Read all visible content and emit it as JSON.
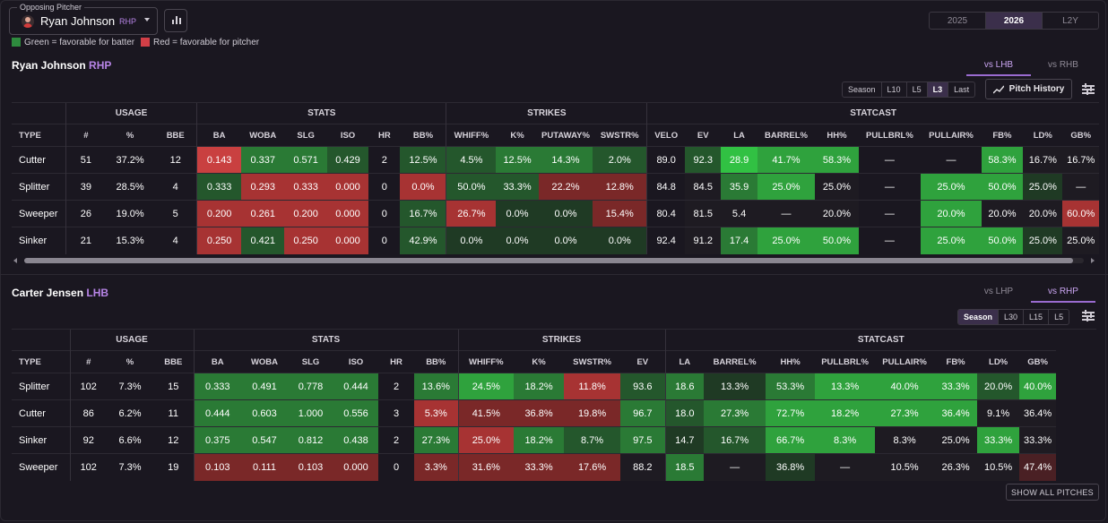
{
  "header": {
    "opposing_label": "Opposing Pitcher",
    "pitcher_name": "Ryan Johnson",
    "pitcher_hand": "RHP",
    "legend_green": "Green = favorable for batter",
    "legend_red": "Red = favorable for pitcher",
    "colors": {
      "green": "#2e8b3e",
      "red": "#d23f47",
      "accent": "#b784e6"
    }
  },
  "years": [
    {
      "label": "2025"
    },
    {
      "label": "2026"
    },
    {
      "label": "L2Y"
    }
  ],
  "pitcher_section": {
    "name": "Ryan Johnson",
    "hand": "RHP",
    "split_tabs": [
      "vs LHB",
      "vs RHB"
    ],
    "ranges": [
      "Season",
      "L10",
      "L5",
      "L3",
      "Last"
    ],
    "pitch_history": "Pitch History",
    "groups": [
      "USAGE",
      "STATS",
      "STRIKES",
      "STATCAST"
    ],
    "columns": [
      "TYPE",
      "#",
      "%",
      "BBE",
      "BA",
      "WOBA",
      "SLG",
      "ISO",
      "HR",
      "BB%",
      "WHIFF%",
      "K%",
      "PUTAWAY%",
      "SWSTR%",
      "VELO",
      "EV",
      "LA",
      "BARREL%",
      "HH%",
      "PULLBRL%",
      "PULLAIR%",
      "FB%",
      "LD%",
      "GB%"
    ],
    "rows": [
      [
        "Cutter",
        "51",
        "37.2%",
        "12",
        "0.143",
        "0.337",
        "0.571",
        "0.429",
        "2",
        "12.5%",
        "4.5%",
        "12.5%",
        "14.3%",
        "2.0%",
        "89.0",
        "92.3",
        "28.9",
        "41.7%",
        "58.3%",
        "—",
        "—",
        "58.3%",
        "16.7%",
        "16.7%"
      ],
      [
        "Splitter",
        "39",
        "28.5%",
        "4",
        "0.333",
        "0.293",
        "0.333",
        "0.000",
        "0",
        "0.0%",
        "50.0%",
        "33.3%",
        "22.2%",
        "12.8%",
        "84.8",
        "84.5",
        "35.9",
        "25.0%",
        "25.0%",
        "—",
        "25.0%",
        "50.0%",
        "25.0%",
        "—"
      ],
      [
        "Sweeper",
        "26",
        "19.0%",
        "5",
        "0.200",
        "0.261",
        "0.200",
        "0.000",
        "0",
        "16.7%",
        "26.7%",
        "0.0%",
        "0.0%",
        "15.4%",
        "80.4",
        "81.5",
        "5.4",
        "—",
        "20.0%",
        "—",
        "20.0%",
        "20.0%",
        "20.0%",
        "60.0%"
      ],
      [
        "Sinker",
        "21",
        "15.3%",
        "4",
        "0.250",
        "0.421",
        "0.250",
        "0.000",
        "0",
        "42.9%",
        "0.0%",
        "0.0%",
        "0.0%",
        "0.0%",
        "92.4",
        "91.2",
        "17.4",
        "25.0%",
        "50.0%",
        "—",
        "25.0%",
        "50.0%",
        "25.0%",
        "25.0%"
      ]
    ]
  },
  "batter_section": {
    "name": "Carter Jensen",
    "hand": "LHB",
    "split_tabs": [
      "vs LHP",
      "vs RHP"
    ],
    "ranges": [
      "Season",
      "L30",
      "L15",
      "L5"
    ],
    "groups": [
      "USAGE",
      "STATS",
      "STRIKES",
      "STATCAST"
    ],
    "columns": [
      "TYPE",
      "#",
      "%",
      "BBE",
      "BA",
      "WOBA",
      "SLG",
      "ISO",
      "HR",
      "BB%",
      "WHIFF%",
      "K%",
      "SWSTR%",
      "EV",
      "LA",
      "BARREL%",
      "HH%",
      "PULLBRL%",
      "PULLAIR%",
      "FB%",
      "LD%",
      "GB%"
    ],
    "rows": [
      [
        "Splitter",
        "102",
        "7.3%",
        "15",
        "0.333",
        "0.491",
        "0.778",
        "0.444",
        "2",
        "13.6%",
        "24.5%",
        "18.2%",
        "11.8%",
        "93.6",
        "18.6",
        "13.3%",
        "53.3%",
        "13.3%",
        "40.0%",
        "33.3%",
        "20.0%",
        "40.0%"
      ],
      [
        "Cutter",
        "86",
        "6.2%",
        "11",
        "0.444",
        "0.603",
        "1.000",
        "0.556",
        "3",
        "5.3%",
        "41.5%",
        "36.8%",
        "19.8%",
        "96.7",
        "18.0",
        "27.3%",
        "72.7%",
        "18.2%",
        "27.3%",
        "36.4%",
        "9.1%",
        "36.4%"
      ],
      [
        "Sinker",
        "92",
        "6.6%",
        "12",
        "0.375",
        "0.547",
        "0.812",
        "0.438",
        "2",
        "27.3%",
        "25.0%",
        "18.2%",
        "8.7%",
        "97.5",
        "14.7",
        "16.7%",
        "66.7%",
        "8.3%",
        "8.3%",
        "25.0%",
        "33.3%",
        "33.3%"
      ],
      [
        "Sweeper",
        "102",
        "7.3%",
        "19",
        "0.103",
        "0.111",
        "0.103",
        "0.000",
        "0",
        "3.3%",
        "31.6%",
        "33.3%",
        "17.6%",
        "88.2",
        "18.5",
        "—",
        "36.8%",
        "—",
        "10.5%",
        "26.3%",
        "10.5%",
        "47.4%"
      ]
    ],
    "show_all": "SHOW ALL PITCHES"
  }
}
